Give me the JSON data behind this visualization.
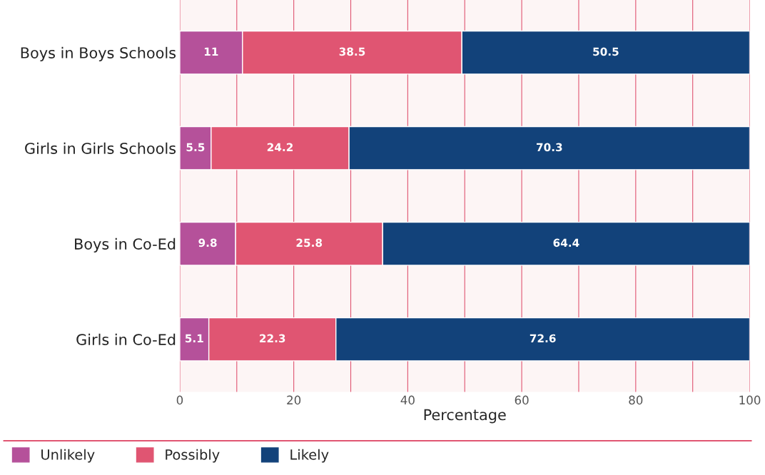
{
  "chart_data": {
    "type": "bar",
    "orientation": "horizontal",
    "stacked": true,
    "xlabel": "Percentage",
    "categories": [
      "Boys in Boys Schools",
      "Girls in Girls Schools",
      "Boys in Co-Ed",
      "Girls in Co-Ed"
    ],
    "series": [
      {
        "name": "Unlikely",
        "color": "#b5519a",
        "values": [
          11,
          5.5,
          9.8,
          5.1
        ]
      },
      {
        "name": "Possibly",
        "color": "#e05572",
        "values": [
          38.5,
          24.2,
          25.8,
          22.3
        ]
      },
      {
        "name": "Likely",
        "color": "#12427a",
        "values": [
          50.5,
          70.3,
          64.4,
          72.6
        ]
      }
    ],
    "xlim": [
      0,
      100
    ],
    "xticks": [
      0,
      {
        "value": 10,
        "label": null
      },
      20,
      {
        "value": 30,
        "label": null
      },
      40,
      {
        "value": 50,
        "label": null
      },
      60,
      {
        "value": 70,
        "label": null
      },
      80,
      {
        "value": 90,
        "label": null
      },
      100
    ],
    "grid": "x",
    "legend": "bottom",
    "data_labels": true
  }
}
